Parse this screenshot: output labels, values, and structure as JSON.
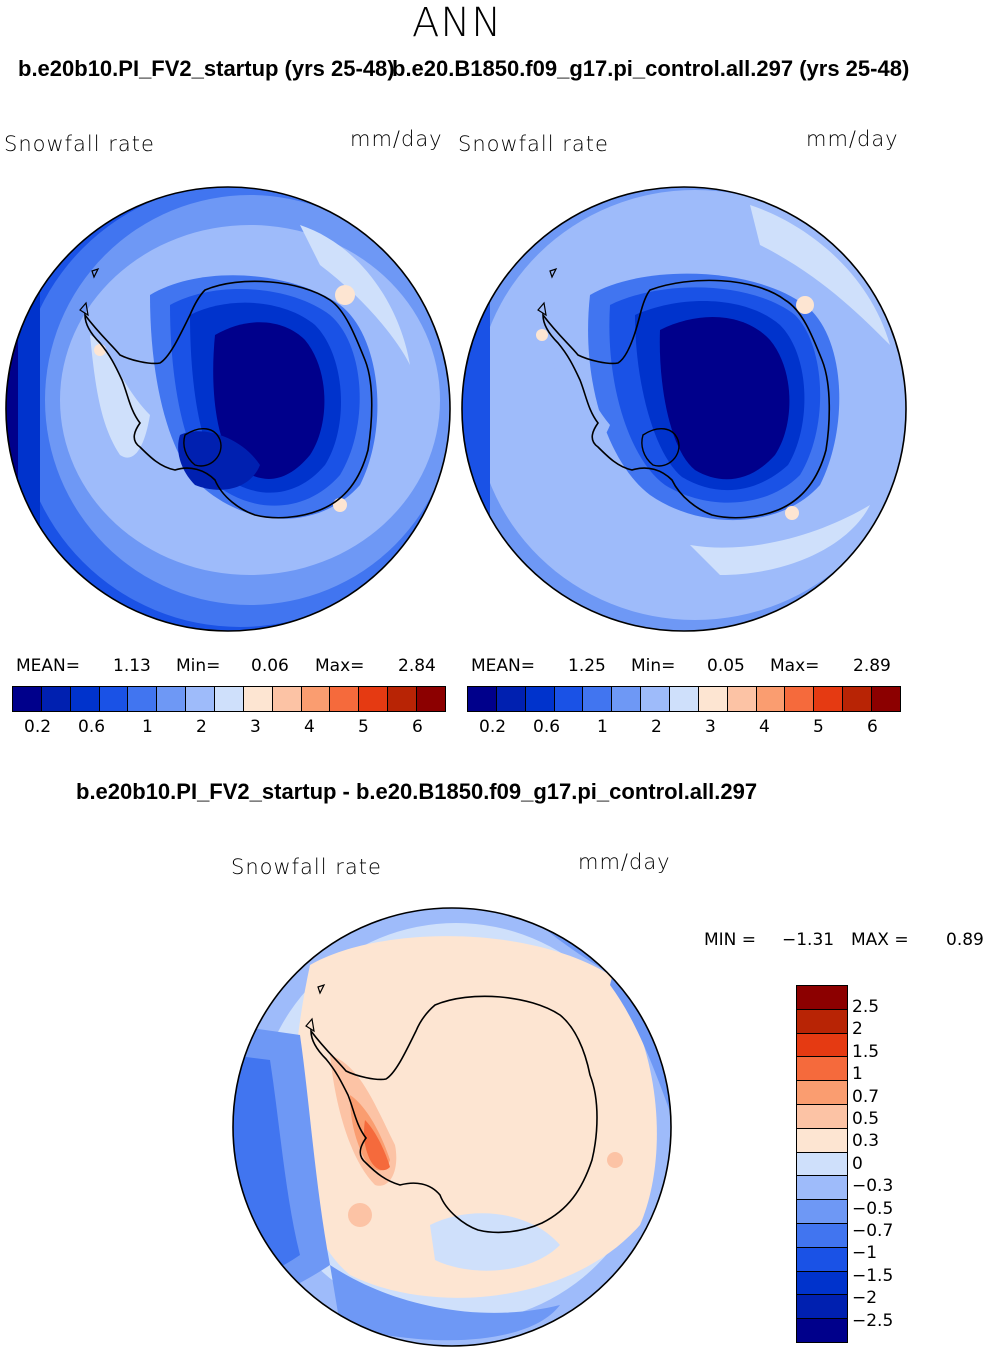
{
  "header": {
    "season": "ANN",
    "case_titles": [
      "b.e20b10.PI_FV2_startup (yrs 25-48)",
      "b.e20.B1850.f09_g17.pi_control.all.297 (yrs 25-48)"
    ],
    "diff_title": "b.e20b10.PI_FV2_startup - b.e20.B1850.f09_g17.pi_control.all.297"
  },
  "panels": [
    {
      "variable": "Snowfall rate",
      "units": "mm/day",
      "mean_label": "MEAN=",
      "mean": "1.13",
      "min_label": "Min=",
      "min": "0.06",
      "max_label": "Max=",
      "max": "2.84"
    },
    {
      "variable": "Snowfall rate",
      "units": "mm/day",
      "mean_label": "MEAN=",
      "mean": "1.25",
      "min_label": "Min=",
      "min": "0.05",
      "max_label": "Max=",
      "max": "2.89"
    }
  ],
  "diff_panel": {
    "variable": "Snowfall rate",
    "units": "mm/day",
    "min_label": "MIN =",
    "min": "−1.31",
    "max_label": "MAX =",
    "max": "0.89"
  },
  "colorbar_abs": {
    "colors": [
      "#00008b",
      "#0020b0",
      "#0033cc",
      "#1a52e6",
      "#4175f0",
      "#6e98f5",
      "#9ebbfa",
      "#cfe0fb",
      "#fde5d2",
      "#fcc3a5",
      "#fa9d70",
      "#f56a3c",
      "#e53a12",
      "#b82405",
      "#8c0000"
    ],
    "tick_labels": [
      "0.2",
      "0.6",
      "1",
      "2",
      "3",
      "4",
      "5",
      "6"
    ]
  },
  "colorbar_diff": {
    "colors": [
      "#00008b",
      "#0020b0",
      "#0033cc",
      "#1a52e6",
      "#4175f0",
      "#6e98f5",
      "#9ebbfa",
      "#cfe0fb",
      "#fde5d2",
      "#fcc3a5",
      "#fa9d70",
      "#f56a3c",
      "#e53a12",
      "#b82405",
      "#8c0000"
    ],
    "tick_labels": [
      "2.5",
      "2",
      "1.5",
      "1",
      "0.7",
      "0.5",
      "0.3",
      "0",
      "−0.3",
      "−0.5",
      "−0.7",
      "−1",
      "−1.5",
      "−2",
      "−2.5"
    ]
  }
}
